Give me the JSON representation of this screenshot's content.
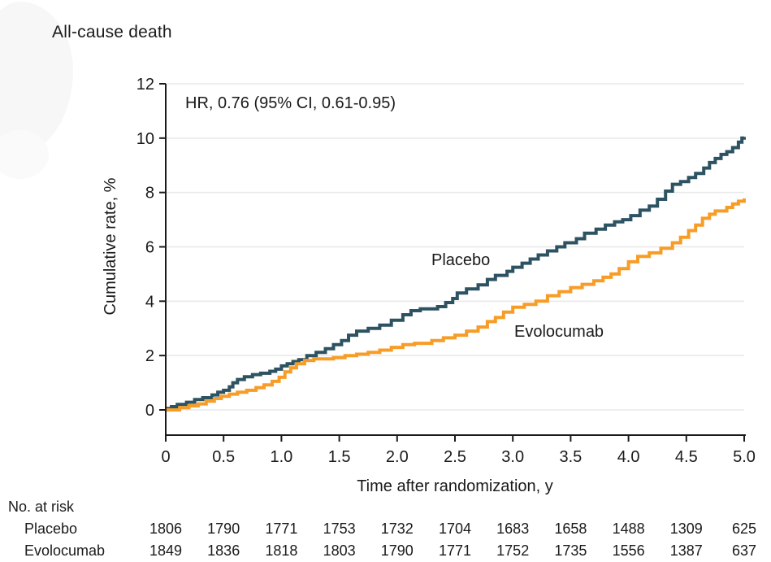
{
  "title": "All-cause death",
  "chart_data": {
    "type": "line",
    "subtype": "kaplan-meier-cumulative-incidence-step",
    "title": "All-cause death",
    "annotation": "HR, 0.76 (95% CI, 0.61-0.95)",
    "xlabel": "Time after randomization, y",
    "ylabel": "Cumulative rate, %",
    "xlim": [
      0,
      5
    ],
    "ylim": [
      0,
      12
    ],
    "xticks": [
      "0",
      "0.5",
      "1.0",
      "1.5",
      "2.0",
      "2.5",
      "3.0",
      "3.5",
      "4.0",
      "4.5",
      "5.0"
    ],
    "yticks": [
      "0",
      "2",
      "4",
      "6",
      "8",
      "10",
      "12"
    ],
    "grid": "horizontal-light",
    "legend_position": "inline-labels-on-plot",
    "series": [
      {
        "name": "Placebo",
        "color": "#2D5362",
        "final_value_pct": 10.05,
        "steps": [
          [
            0,
            0.05
          ],
          [
            0.05,
            0.12
          ],
          [
            0.1,
            0.2
          ],
          [
            0.18,
            0.28
          ],
          [
            0.25,
            0.38
          ],
          [
            0.32,
            0.45
          ],
          [
            0.4,
            0.55
          ],
          [
            0.45,
            0.65
          ],
          [
            0.5,
            0.72
          ],
          [
            0.55,
            0.85
          ],
          [
            0.58,
            1.0
          ],
          [
            0.62,
            1.12
          ],
          [
            0.68,
            1.22
          ],
          [
            0.75,
            1.3
          ],
          [
            0.82,
            1.35
          ],
          [
            0.9,
            1.42
          ],
          [
            0.95,
            1.5
          ],
          [
            1.0,
            1.62
          ],
          [
            1.05,
            1.7
          ],
          [
            1.1,
            1.78
          ],
          [
            1.15,
            1.85
          ],
          [
            1.22,
            2.0
          ],
          [
            1.3,
            2.12
          ],
          [
            1.38,
            2.25
          ],
          [
            1.45,
            2.4
          ],
          [
            1.52,
            2.55
          ],
          [
            1.58,
            2.75
          ],
          [
            1.65,
            2.9
          ],
          [
            1.75,
            3.0
          ],
          [
            1.85,
            3.12
          ],
          [
            1.95,
            3.3
          ],
          [
            2.05,
            3.5
          ],
          [
            2.12,
            3.65
          ],
          [
            2.2,
            3.72
          ],
          [
            2.35,
            3.8
          ],
          [
            2.42,
            3.95
          ],
          [
            2.48,
            4.1
          ],
          [
            2.52,
            4.3
          ],
          [
            2.6,
            4.45
          ],
          [
            2.7,
            4.6
          ],
          [
            2.78,
            4.8
          ],
          [
            2.85,
            4.95
          ],
          [
            2.95,
            5.1
          ],
          [
            3.0,
            5.25
          ],
          [
            3.08,
            5.4
          ],
          [
            3.15,
            5.55
          ],
          [
            3.22,
            5.7
          ],
          [
            3.3,
            5.85
          ],
          [
            3.38,
            6.0
          ],
          [
            3.45,
            6.15
          ],
          [
            3.55,
            6.3
          ],
          [
            3.62,
            6.5
          ],
          [
            3.72,
            6.65
          ],
          [
            3.8,
            6.8
          ],
          [
            3.88,
            6.92
          ],
          [
            3.95,
            7.0
          ],
          [
            4.02,
            7.15
          ],
          [
            4.1,
            7.35
          ],
          [
            4.18,
            7.5
          ],
          [
            4.25,
            7.75
          ],
          [
            4.32,
            8.05
          ],
          [
            4.38,
            8.3
          ],
          [
            4.45,
            8.4
          ],
          [
            4.52,
            8.55
          ],
          [
            4.58,
            8.7
          ],
          [
            4.65,
            8.9
          ],
          [
            4.7,
            9.1
          ],
          [
            4.75,
            9.25
          ],
          [
            4.8,
            9.4
          ],
          [
            4.85,
            9.5
          ],
          [
            4.9,
            9.65
          ],
          [
            4.95,
            9.85
          ],
          [
            4.98,
            10.0
          ],
          [
            5.0,
            10.05
          ]
        ]
      },
      {
        "name": "Evolocumab",
        "color": "#F79D27",
        "final_value_pct": 7.78,
        "steps": [
          [
            0,
            0.0
          ],
          [
            0.12,
            0.08
          ],
          [
            0.2,
            0.15
          ],
          [
            0.28,
            0.22
          ],
          [
            0.35,
            0.32
          ],
          [
            0.42,
            0.42
          ],
          [
            0.48,
            0.5
          ],
          [
            0.55,
            0.58
          ],
          [
            0.62,
            0.65
          ],
          [
            0.7,
            0.72
          ],
          [
            0.78,
            0.82
          ],
          [
            0.85,
            0.92
          ],
          [
            0.92,
            1.05
          ],
          [
            0.98,
            1.2
          ],
          [
            1.03,
            1.4
          ],
          [
            1.08,
            1.55
          ],
          [
            1.13,
            1.7
          ],
          [
            1.2,
            1.82
          ],
          [
            1.28,
            1.88
          ],
          [
            1.45,
            1.92
          ],
          [
            1.55,
            2.0
          ],
          [
            1.65,
            2.05
          ],
          [
            1.75,
            2.12
          ],
          [
            1.85,
            2.2
          ],
          [
            1.95,
            2.3
          ],
          [
            2.05,
            2.4
          ],
          [
            2.15,
            2.45
          ],
          [
            2.3,
            2.55
          ],
          [
            2.4,
            2.65
          ],
          [
            2.5,
            2.75
          ],
          [
            2.6,
            2.9
          ],
          [
            2.7,
            3.05
          ],
          [
            2.78,
            3.25
          ],
          [
            2.85,
            3.4
          ],
          [
            2.92,
            3.6
          ],
          [
            3.0,
            3.78
          ],
          [
            3.1,
            3.88
          ],
          [
            3.2,
            4.0
          ],
          [
            3.3,
            4.2
          ],
          [
            3.4,
            4.35
          ],
          [
            3.5,
            4.5
          ],
          [
            3.6,
            4.62
          ],
          [
            3.7,
            4.75
          ],
          [
            3.78,
            4.88
          ],
          [
            3.85,
            5.0
          ],
          [
            3.92,
            5.2
          ],
          [
            4.0,
            5.45
          ],
          [
            4.08,
            5.65
          ],
          [
            4.18,
            5.78
          ],
          [
            4.28,
            5.95
          ],
          [
            4.38,
            6.15
          ],
          [
            4.45,
            6.35
          ],
          [
            4.52,
            6.6
          ],
          [
            4.58,
            6.8
          ],
          [
            4.64,
            7.05
          ],
          [
            4.7,
            7.2
          ],
          [
            4.75,
            7.32
          ],
          [
            4.85,
            7.45
          ],
          [
            4.9,
            7.58
          ],
          [
            4.95,
            7.68
          ],
          [
            5.0,
            7.78
          ]
        ]
      }
    ],
    "risk_table": {
      "title": "No. at risk",
      "time_points": [
        0,
        0.5,
        1.0,
        1.5,
        2.0,
        2.5,
        3.0,
        3.5,
        4.0,
        4.5,
        5.0
      ],
      "rows": [
        {
          "label": "Placebo",
          "values": [
            "1806",
            "1790",
            "1771",
            "1753",
            "1732",
            "1704",
            "1683",
            "1658",
            "1488",
            "1309",
            "625"
          ]
        },
        {
          "label": "Evolocumab",
          "values": [
            "1849",
            "1836",
            "1818",
            "1803",
            "1790",
            "1771",
            "1752",
            "1735",
            "1556",
            "1387",
            "637"
          ]
        }
      ]
    },
    "colors": {
      "placebo": "#2D5362",
      "evolocumab": "#F79D27",
      "grid": "#e8e8e8",
      "axis": "#1a1a1a"
    }
  }
}
